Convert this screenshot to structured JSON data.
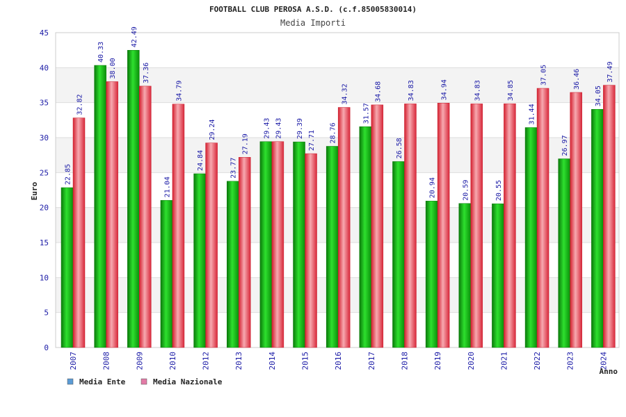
{
  "chart_data": {
    "type": "bar",
    "title": "FOOTBALL CLUB PEROSA A.S.D. (c.f.85005830014)",
    "subtitle": "Media Importi",
    "xlabel": "Anno",
    "ylabel": "Euro",
    "ylim": [
      0,
      45
    ],
    "yticks": [
      "0",
      "5",
      "10",
      "15",
      "20",
      "25",
      "30",
      "35",
      "40",
      "45"
    ],
    "grid": true,
    "legend_position": "bottom-left",
    "categories": [
      "2007",
      "2008",
      "2009",
      "2010",
      "2012",
      "2013",
      "2014",
      "2015",
      "2016",
      "2017",
      "2018",
      "2019",
      "2020",
      "2021",
      "2022",
      "2023",
      "2024"
    ],
    "series": [
      {
        "name": "Media Ente",
        "color": "#11b311",
        "legend_color": "#5b9bd5",
        "values": [
          22.85,
          40.33,
          42.49,
          21.04,
          24.84,
          23.77,
          29.43,
          29.39,
          28.76,
          31.57,
          26.58,
          20.94,
          20.59,
          20.55,
          31.44,
          26.97,
          34.05
        ],
        "labels": [
          "22.85",
          "40.33",
          "42.49",
          "21.04",
          "24.84",
          "23.77",
          "29.43",
          "29.39",
          "28.76",
          "31.57",
          "26.58",
          "20.94",
          "20.59",
          "20.55",
          "31.44",
          "26.97",
          "34.05"
        ]
      },
      {
        "name": "Media Nazionale",
        "color": "#e8394a",
        "legend_color": "#e27ba6",
        "values": [
          32.82,
          38.0,
          37.36,
          34.79,
          29.24,
          27.19,
          29.43,
          27.71,
          34.32,
          34.68,
          34.83,
          34.94,
          34.83,
          34.85,
          37.05,
          36.46,
          37.49
        ],
        "labels": [
          "32.82",
          "38.00",
          "37.36",
          "34.79",
          "29.24",
          "27.19",
          "29.43",
          "27.71",
          "34.32",
          "34.68",
          "34.83",
          "34.94",
          "34.83",
          "34.85",
          "37.05",
          "36.46",
          "37.49"
        ]
      }
    ]
  }
}
